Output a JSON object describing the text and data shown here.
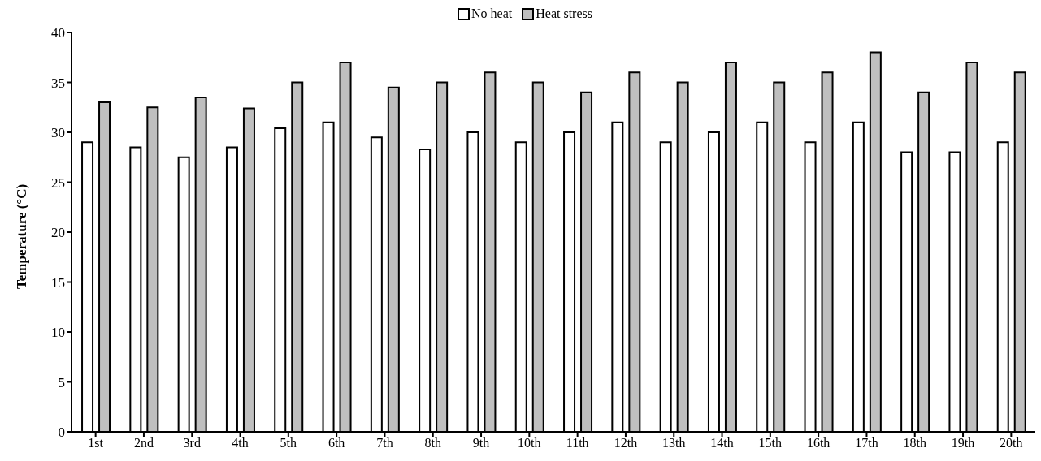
{
  "chart_data": {
    "type": "bar",
    "ylabel": "Temperature (°C)",
    "categories": [
      "1st",
      "2nd",
      "3rd",
      "4th",
      "5th",
      "6th",
      "7th",
      "8th",
      "9th",
      "10th",
      "11th",
      "12th",
      "13th",
      "14th",
      "15th",
      "16th",
      "17th",
      "18th",
      "19th",
      "20th"
    ],
    "series": [
      {
        "name": "No heat",
        "color": "#ffffff",
        "values": [
          29,
          28.5,
          27.5,
          28.5,
          30.4,
          31,
          29.5,
          28.3,
          30,
          29,
          30,
          31,
          29,
          30,
          31,
          29,
          31,
          28,
          28,
          29
        ]
      },
      {
        "name": "Heat stress",
        "color": "#bfbfbf",
        "values": [
          33,
          32.5,
          33.5,
          32.4,
          35,
          37,
          34.5,
          35,
          36,
          35,
          34,
          36,
          35,
          37,
          35,
          36,
          38,
          34,
          37,
          36
        ]
      }
    ],
    "ylim": [
      0,
      40
    ],
    "yticks": [
      0,
      5,
      10,
      15,
      20,
      25,
      30,
      35,
      40
    ],
    "grid": false,
    "legend": "top"
  }
}
